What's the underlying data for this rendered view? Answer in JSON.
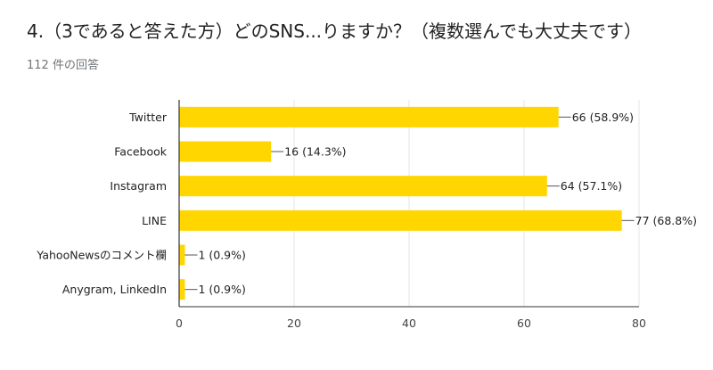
{
  "question": {
    "title": "4.（3であると答えた方）どのSNS...りますか？（複数選んでも大丈夫です）",
    "response_count": "112 件の回答"
  },
  "colors": {
    "bar": "#ffd600",
    "axis": "#333333",
    "grid": "#e6e6e6"
  },
  "chart_data": {
    "type": "bar",
    "orientation": "horizontal",
    "categories": [
      "Twitter",
      "Facebook",
      "Instagram",
      "LINE",
      "YahooNewsのコメント欄",
      "Anygram, LinkedIn"
    ],
    "values": [
      66,
      16,
      64,
      77,
      1,
      1
    ],
    "data_labels": [
      "66 (58.9%)",
      "16 (14.3%)",
      "64 (57.1%)",
      "77 (68.8%)",
      "1 (0.9%)",
      "1 (0.9%)"
    ],
    "xlim": [
      0,
      80
    ],
    "xticks": [
      0,
      20,
      40,
      60,
      80
    ],
    "grid": true,
    "legend": "none"
  }
}
